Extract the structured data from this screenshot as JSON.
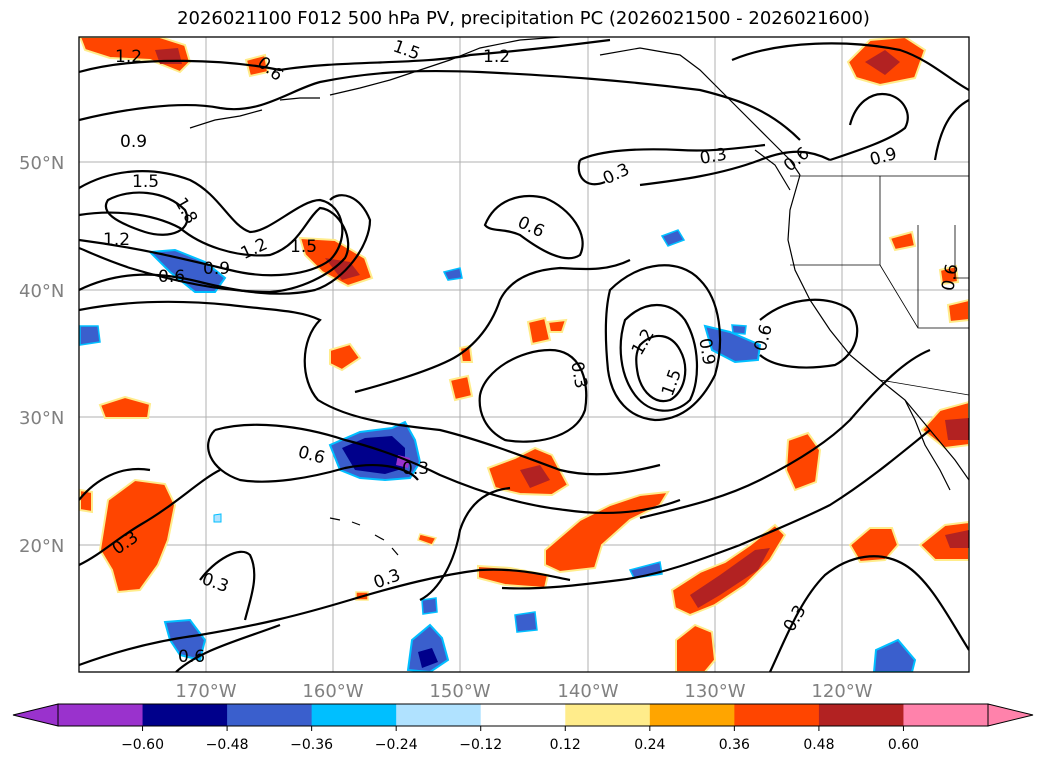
{
  "title": "2026021100 F012 500 hPa PV, precipitation PC (2026021500 - 2026021600)",
  "map": {
    "lat_ticks": [
      "50°N",
      "40°N",
      "30°N",
      "20°N"
    ],
    "lon_ticks": [
      "170°W",
      "160°W",
      "150°W",
      "140°W",
      "130°W",
      "120°W"
    ],
    "gridlines": true
  },
  "contour_labels": [
    "1.2",
    "1.5",
    "0.9",
    "1.2",
    "1.5",
    "1.8",
    "1.2",
    "0.6",
    "0.9",
    "1.2",
    "1.5",
    "0.6",
    "0.3",
    "0.3",
    "0.6",
    "0.9",
    "0.6",
    "1.2",
    "1.5",
    "0.9",
    "0.6",
    "0.3",
    "0.6",
    "0.3",
    "0.3",
    "0.6",
    "0.3",
    "0.3",
    "0.3",
    "0.6"
  ],
  "colorbar": {
    "ticks": [
      "−0.60",
      "−0.48",
      "−0.36",
      "−0.24",
      "−0.12",
      "0.12",
      "0.24",
      "0.36",
      "0.48",
      "0.60"
    ],
    "colors": [
      "#9a32cd",
      "#00008b",
      "#3a5fcd",
      "#00bfff",
      "#b0e2ff",
      "#ffffff",
      "#ffec8b",
      "#ffa500",
      "#ff4500",
      "#b22222",
      "#ff82ab"
    ]
  }
}
